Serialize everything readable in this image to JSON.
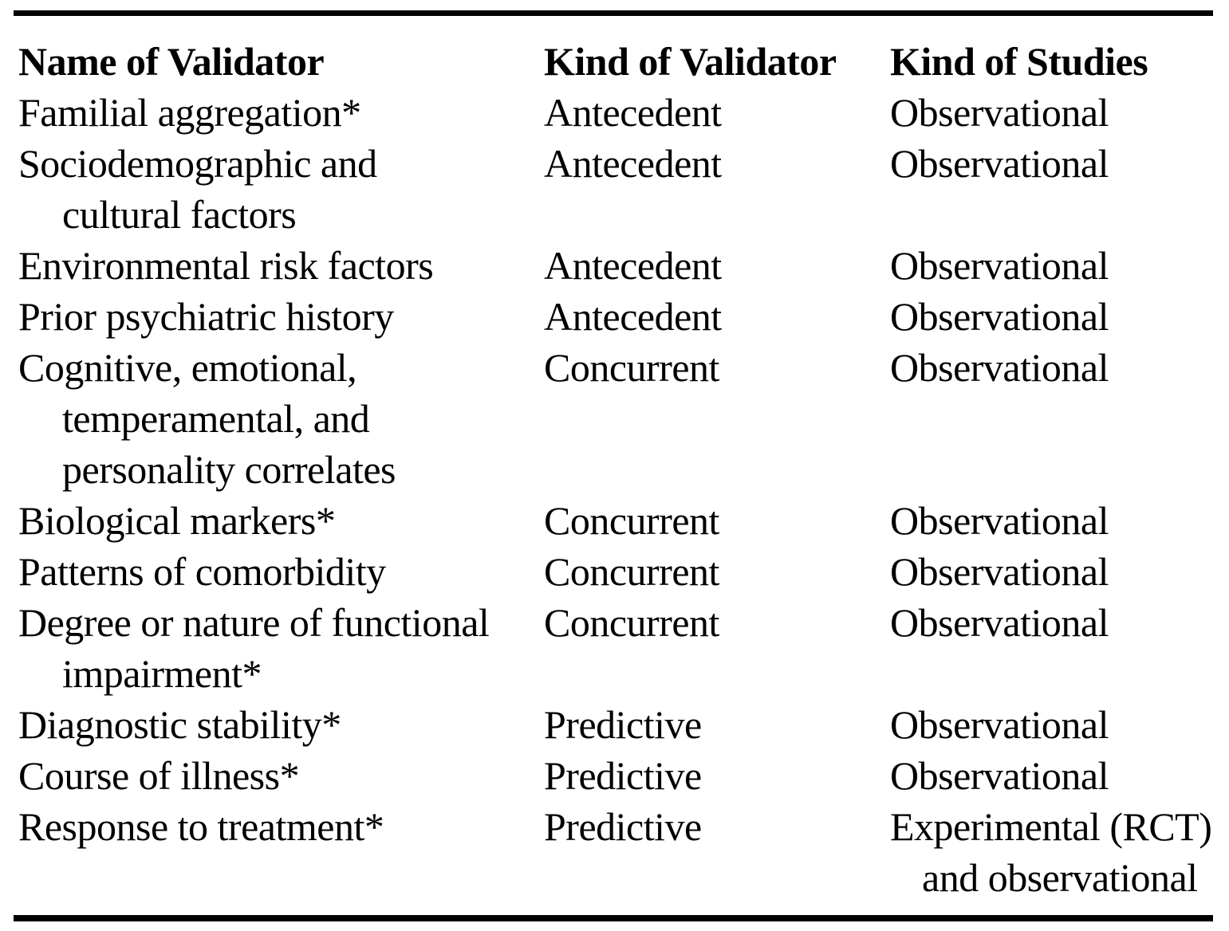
{
  "colors": {
    "background": "#ffffff",
    "text": "#000000",
    "rule": "#000000"
  },
  "table": {
    "columns": [
      "Name of Validator",
      "Kind of Validator",
      "Kind of Studies"
    ],
    "rows": [
      {
        "name": [
          "Familial aggregation*"
        ],
        "kind": "Antecedent",
        "studies": [
          "Observational"
        ]
      },
      {
        "name": [
          "Sociodemographic and",
          "cultural factors"
        ],
        "kind": "Antecedent",
        "studies": [
          "Observational"
        ]
      },
      {
        "name": [
          "Environmental risk factors"
        ],
        "kind": "Antecedent",
        "studies": [
          "Observational"
        ]
      },
      {
        "name": [
          "Prior psychiatric history"
        ],
        "kind": "Antecedent",
        "studies": [
          "Observational"
        ]
      },
      {
        "name": [
          "Cognitive, emotional,",
          "temperamental, and",
          "personality correlates"
        ],
        "kind": "Concurrent",
        "studies": [
          "Observational"
        ]
      },
      {
        "name": [
          "Biological markers*"
        ],
        "kind": "Concurrent",
        "studies": [
          "Observational"
        ]
      },
      {
        "name": [
          "Patterns of comorbidity"
        ],
        "kind": "Concurrent",
        "studies": [
          "Observational"
        ]
      },
      {
        "name": [
          "Degree or nature of functional",
          "impairment*"
        ],
        "kind": "Concurrent",
        "studies": [
          "Observational"
        ]
      },
      {
        "name": [
          "Diagnostic stability*"
        ],
        "kind": "Predictive",
        "studies": [
          "Observational"
        ]
      },
      {
        "name": [
          "Course of illness*"
        ],
        "kind": "Predictive",
        "studies": [
          "Observational"
        ]
      },
      {
        "name": [
          "Response to treatment*"
        ],
        "kind": "Predictive",
        "studies": [
          "Experimental (RCT)",
          "and observational"
        ]
      }
    ]
  }
}
